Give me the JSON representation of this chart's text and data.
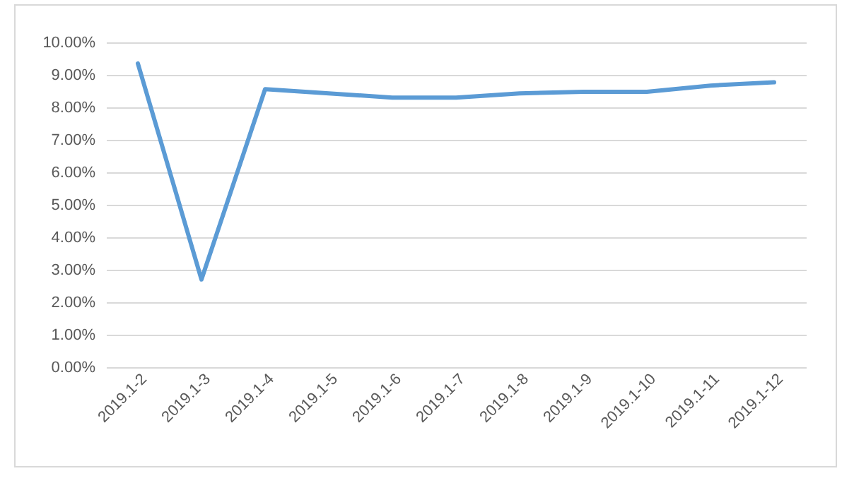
{
  "chart_data": {
    "type": "line",
    "categories": [
      "2019.1-2",
      "2019.1-3",
      "2019.1-4",
      "2019.1-5",
      "2019.1-6",
      "2019.1-7",
      "2019.1-8",
      "2019.1-9",
      "2019.1-10",
      "2019.1-11",
      "2019.1-12"
    ],
    "series": [
      {
        "color": "#5b9bd5",
        "values": [
          9.35,
          2.7,
          8.56,
          8.43,
          8.3,
          8.3,
          8.43,
          8.48,
          8.48,
          8.67,
          8.77
        ]
      }
    ],
    "ylim": [
      0,
      10
    ],
    "yticks": [
      {
        "value": 0,
        "label": "0.00%"
      },
      {
        "value": 1,
        "label": "1.00%"
      },
      {
        "value": 2,
        "label": "2.00%"
      },
      {
        "value": 3,
        "label": "3.00%"
      },
      {
        "value": 4,
        "label": "4.00%"
      },
      {
        "value": 5,
        "label": "5.00%"
      },
      {
        "value": 6,
        "label": "6.00%"
      },
      {
        "value": 7,
        "label": "7.00%"
      },
      {
        "value": 8,
        "label": "8.00%"
      },
      {
        "value": 9,
        "label": "9.00%"
      },
      {
        "value": 10,
        "label": "10.00%"
      }
    ],
    "grid": "y",
    "legend": false,
    "marker": "none",
    "line_style": "solid"
  }
}
